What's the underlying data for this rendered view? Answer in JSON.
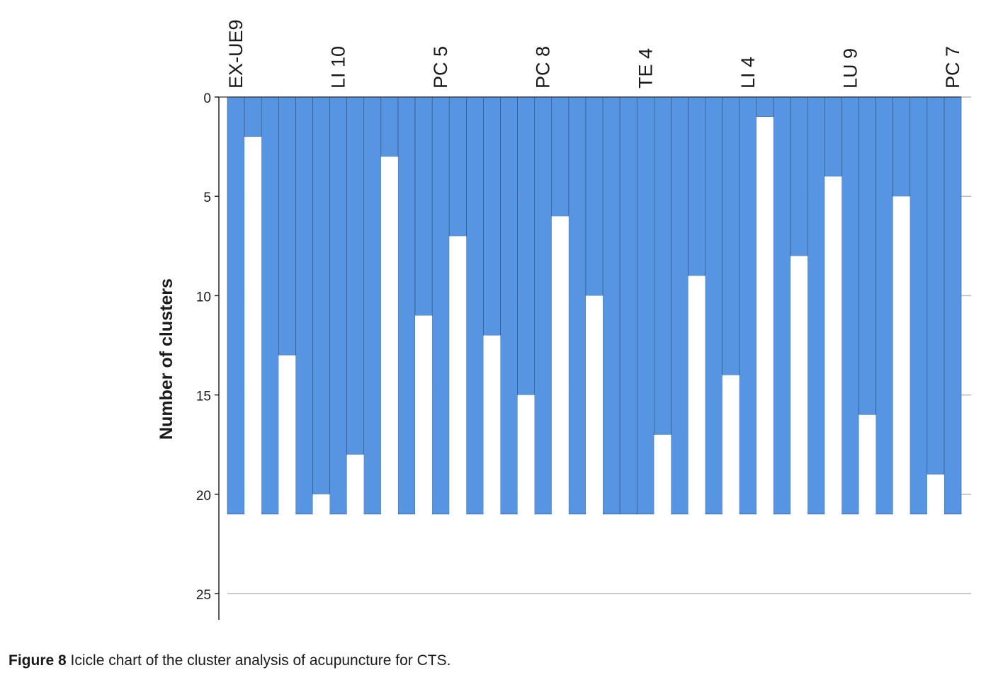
{
  "caption": {
    "label": "Figure 8",
    "text": "Icicle chart of the cluster analysis of acupuncture for CTS."
  },
  "chart_data": {
    "type": "icicle",
    "title": "",
    "ylabel": "Number of clusters",
    "xlabel": "",
    "ylim": [
      0,
      25
    ],
    "yticks": [
      0,
      5,
      10,
      15,
      20,
      25
    ],
    "y_axis_inverted": true,
    "grid": true,
    "bar_color": "#5795E2",
    "gap_color": "#FFFFFF",
    "case_count": 22,
    "bar_bottom": 21,
    "visible_case_labels": [
      {
        "case_index": 0,
        "label": "EX-UE9"
      },
      {
        "case_index": 3,
        "label": "LI 10"
      },
      {
        "case_index": 6,
        "label": "PC 5"
      },
      {
        "case_index": 9,
        "label": "PC 8"
      },
      {
        "case_index": 12,
        "label": "TE 4"
      },
      {
        "case_index": 15,
        "label": "LI 4"
      },
      {
        "case_index": 18,
        "label": "LU 9"
      },
      {
        "case_index": 21,
        "label": "PC 7"
      }
    ],
    "gap_join_levels": [
      2,
      13,
      20,
      18,
      3,
      11,
      7,
      12,
      15,
      6,
      10,
      21,
      17,
      9,
      14,
      1,
      8,
      4,
      16,
      5,
      19
    ]
  }
}
